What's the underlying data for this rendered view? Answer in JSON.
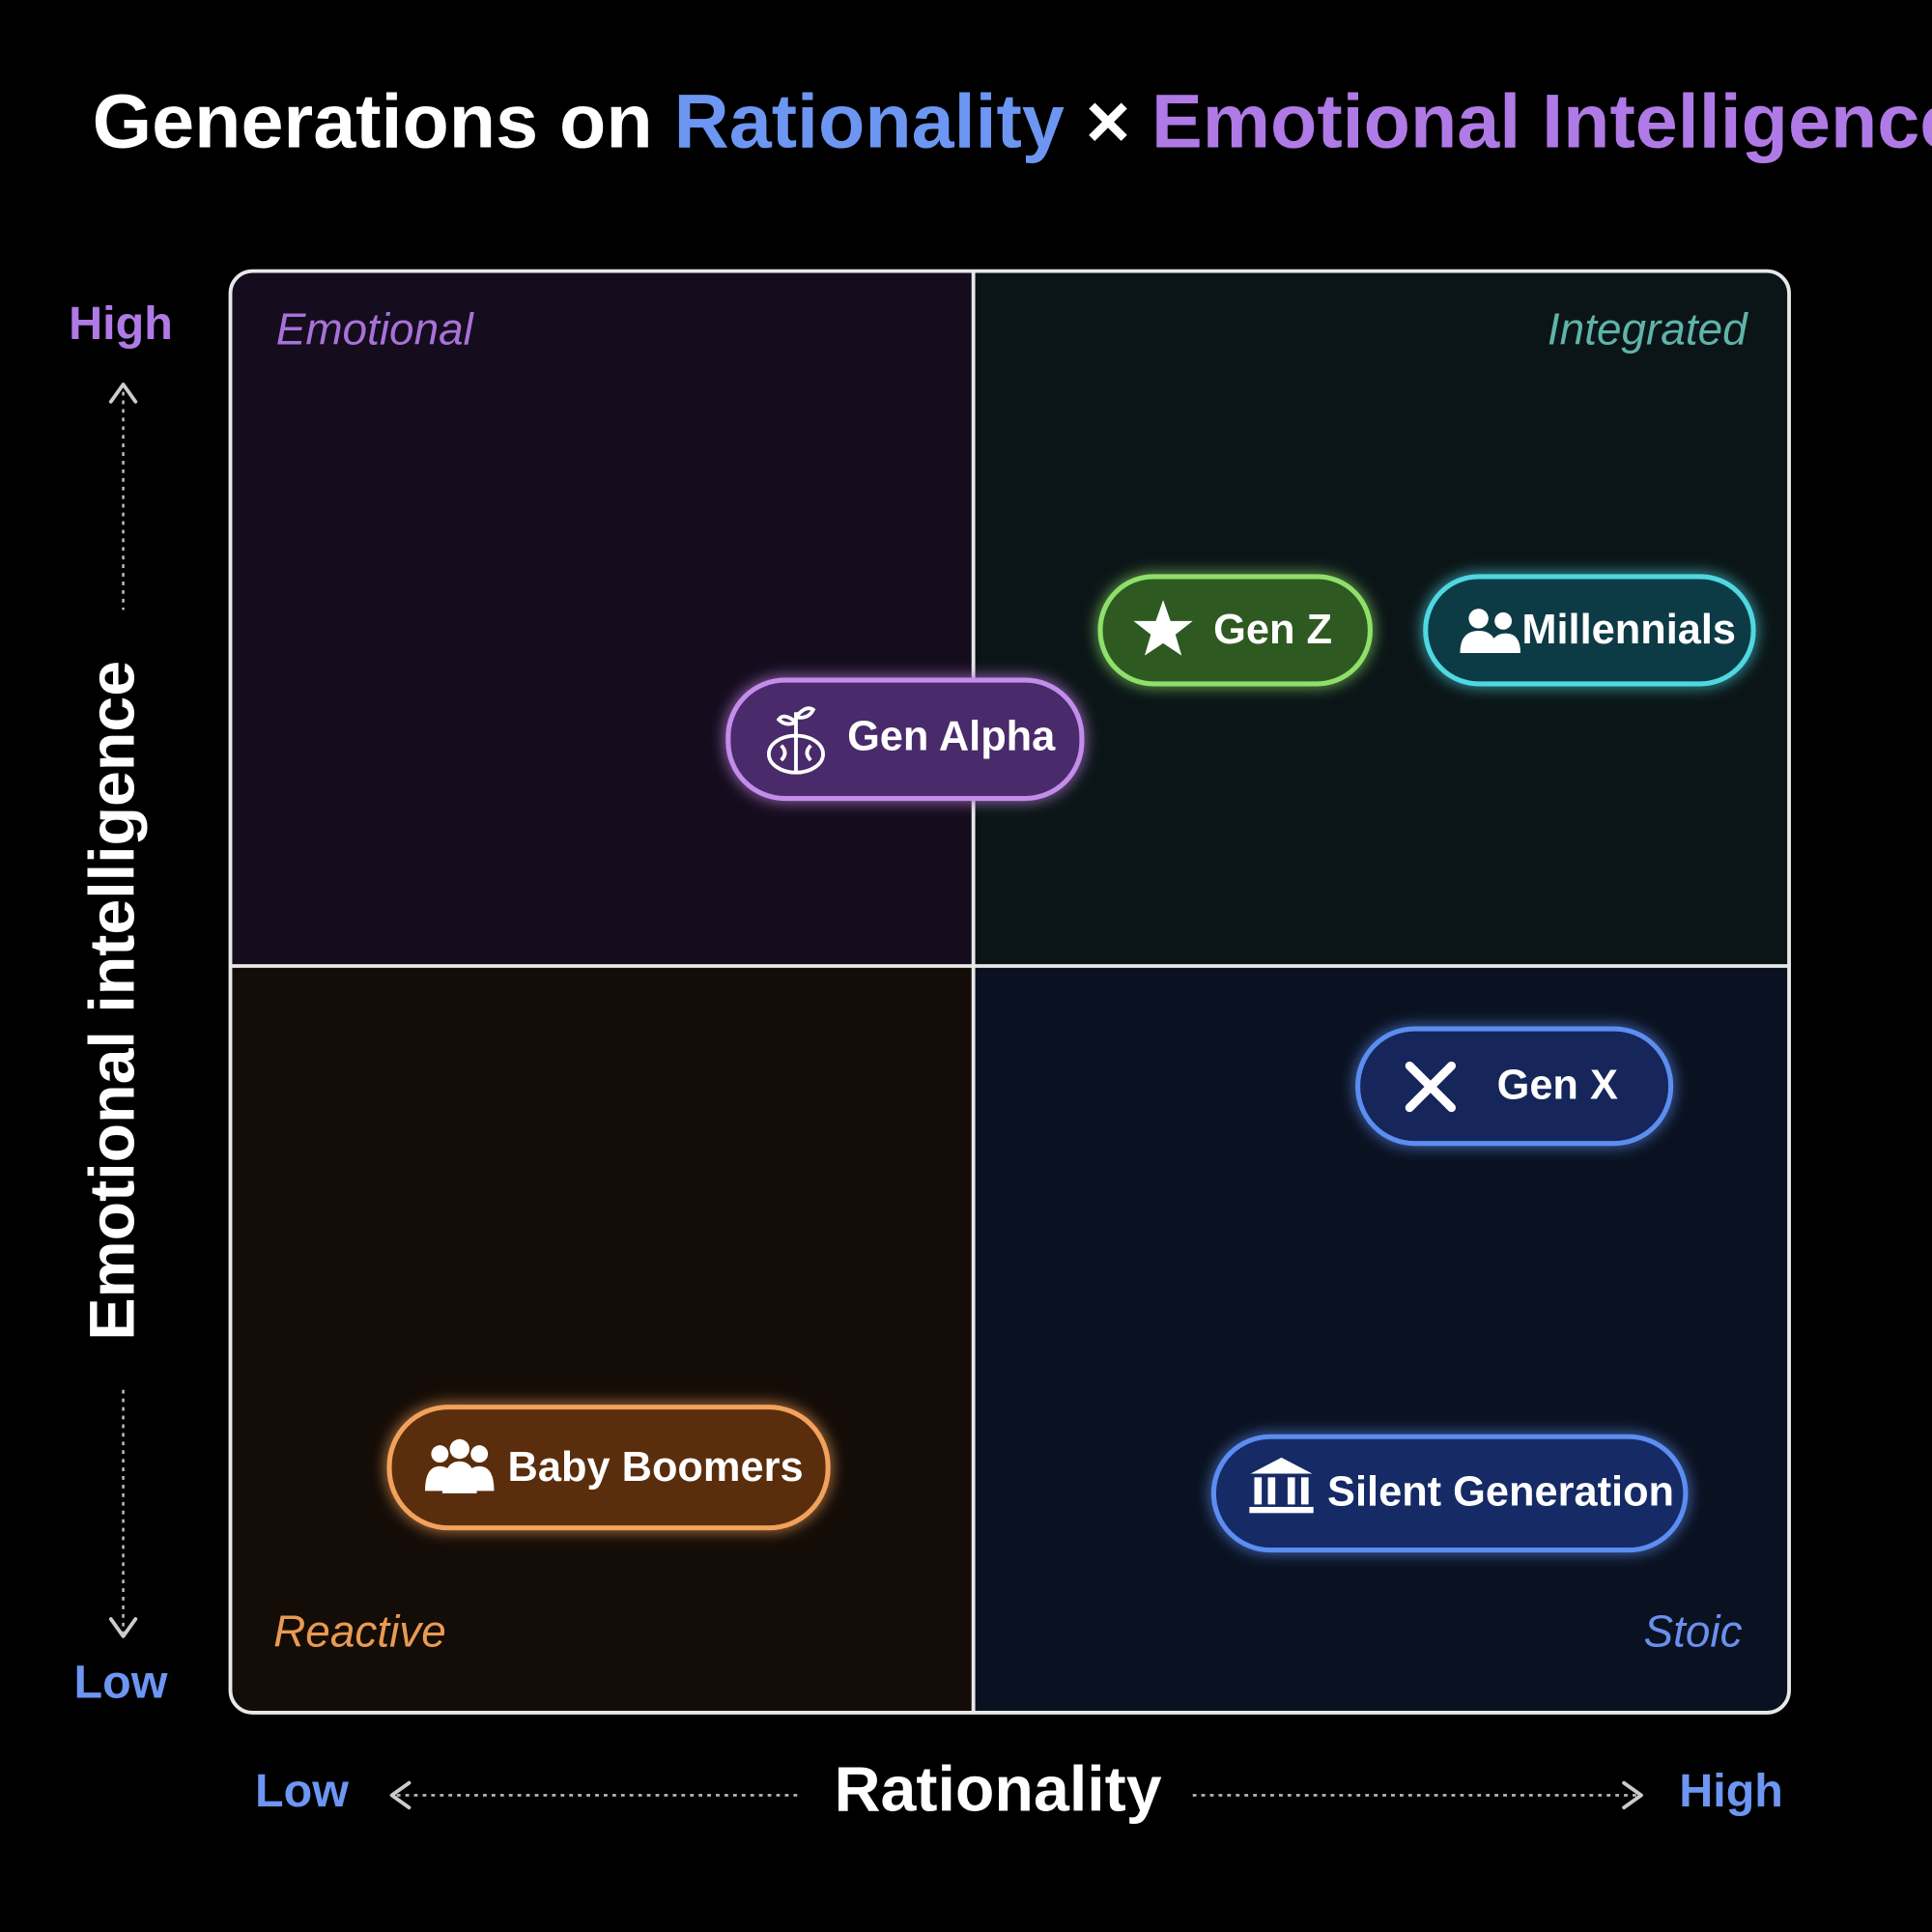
{
  "title": {
    "prefix": "Generations on ",
    "x_term": "Rationality",
    "separator": " × ",
    "y_term": "Emotional Intelligence"
  },
  "y_axis": {
    "label": "Emotional intelligence",
    "high": "High",
    "low": "Low"
  },
  "x_axis": {
    "label": "Rationality",
    "low": "Low",
    "high": "High"
  },
  "quadrants": {
    "top_left": "Emotional",
    "top_right": "Integrated",
    "bottom_left": "Reactive",
    "bottom_right": "Stoic"
  },
  "nodes": [
    {
      "label": "Gen Z"
    },
    {
      "label": "Millennials"
    },
    {
      "label": "Gen Alpha"
    },
    {
      "label": "Gen X"
    },
    {
      "label": "Baby Boomers"
    },
    {
      "label": "Silent Generation"
    }
  ]
}
